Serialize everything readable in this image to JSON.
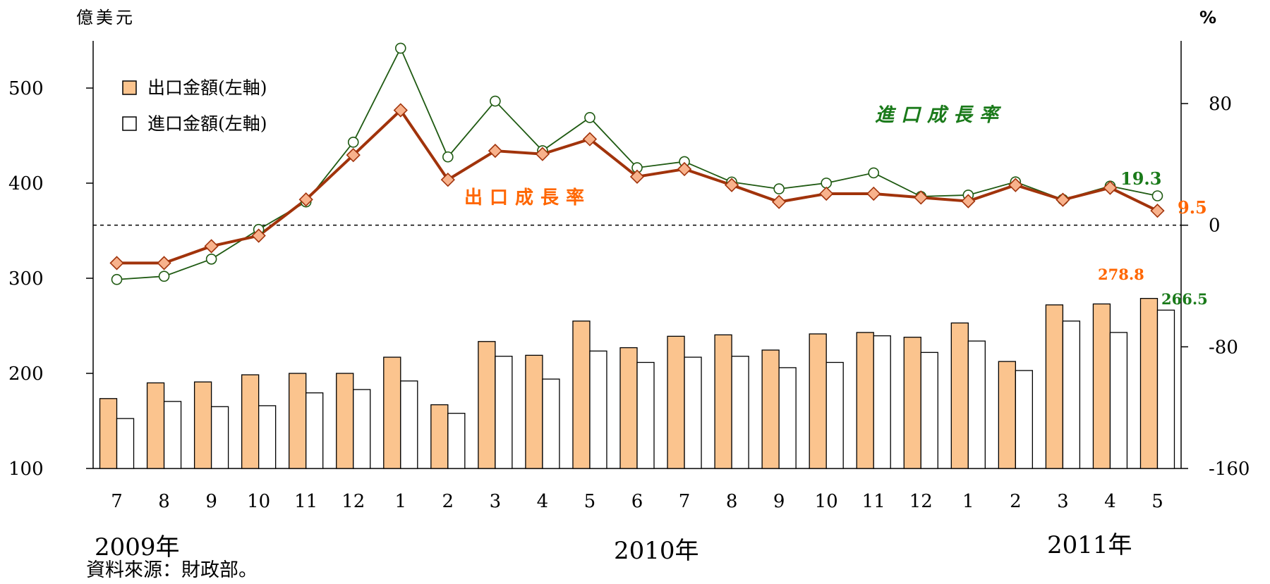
{
  "colors": {
    "export_bar": "#FBC48E",
    "import_bar": "#FFFFFF",
    "export_line": "#A1330B",
    "export_marker": "#F8B28C",
    "import_line": "#1F5A12",
    "export_label": "#FF6600",
    "import_label": "#1A7A1A"
  },
  "chart_data": {
    "type": "bar+line",
    "left_axis": {
      "unit": "億美元",
      "ylim": [
        100,
        550
      ],
      "ticks": [
        "100",
        "200",
        "300",
        "400",
        "500"
      ]
    },
    "right_axis": {
      "unit": "%",
      "ylim": [
        -160,
        80
      ],
      "ticks": [
        "-160",
        "-80",
        "0",
        "80"
      ]
    },
    "categories": [
      "7",
      "8",
      "9",
      "10",
      "11",
      "12",
      "1",
      "2",
      "3",
      "4",
      "5",
      "6",
      "7",
      "8",
      "9",
      "10",
      "11",
      "12",
      "1",
      "2",
      "3",
      "4",
      "5"
    ],
    "year_labels": [
      "2009年",
      "2010年",
      "2011年"
    ],
    "series": [
      {
        "name": "出口金額(左軸)",
        "kind": "bar",
        "axis": "left",
        "values": [
          173.5,
          190,
          191,
          198.5,
          200,
          200,
          217,
          167,
          233.5,
          219,
          255,
          227,
          239,
          240.5,
          224.5,
          241.5,
          243,
          238,
          253,
          212.5,
          272,
          273,
          278.8
        ]
      },
      {
        "name": "進口金額(左軸)",
        "kind": "bar",
        "axis": "left",
        "values": [
          152.5,
          170.5,
          165,
          166,
          179.5,
          183,
          192,
          158,
          218,
          194,
          223.5,
          211.5,
          217,
          218,
          206,
          211.5,
          239.5,
          222,
          234,
          203,
          255,
          243,
          266.5
        ]
      },
      {
        "name": "出口成長率",
        "kind": "line",
        "axis": "right",
        "values": [
          -24.9,
          -24.9,
          -13.8,
          -6.9,
          16.9,
          46.1,
          75.6,
          29.9,
          48.9,
          46.8,
          56.6,
          31.9,
          36.9,
          26.4,
          15.3,
          20.7,
          20.7,
          18.2,
          15.8,
          26.4,
          16.7,
          24.6,
          9.5
        ]
      },
      {
        "name": "進口成長率",
        "kind": "line",
        "axis": "right",
        "values": [
          -35.7,
          -33.6,
          -22.3,
          -2.8,
          15.3,
          54.6,
          116.4,
          44.9,
          81.6,
          49.0,
          70.8,
          37.8,
          41.8,
          28.4,
          23.9,
          27.7,
          34.4,
          18.9,
          19.8,
          28.5,
          16.9,
          25.7,
          19.3
        ]
      }
    ],
    "annotations": {
      "export_growth_title": "出口成長率",
      "import_growth_title": "進口成長率",
      "export_growth_last": "9.5",
      "import_growth_last": "19.3",
      "export_value_last": "278.8",
      "import_value_last": "266.5"
    },
    "source": "資料來源：財政部。"
  }
}
